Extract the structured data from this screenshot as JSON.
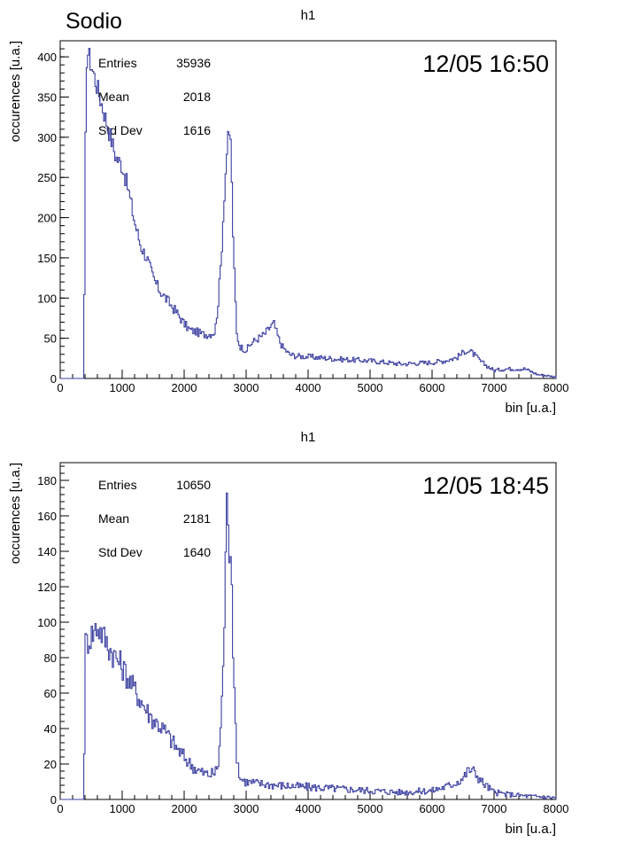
{
  "figure_title": "Sodio",
  "chart_data": [
    {
      "type": "histogram",
      "title": "h1",
      "timestamp": "12/05 16:50",
      "xlabel": "bin [u.a.]",
      "ylabel": "occurences [u.a.]",
      "xlim": [
        0,
        8000
      ],
      "ylim": [
        0,
        420
      ],
      "x_ticks": [
        0,
        1000,
        2000,
        3000,
        4000,
        5000,
        6000,
        7000,
        8000
      ],
      "y_ticks": [
        0,
        50,
        100,
        150,
        200,
        250,
        300,
        350,
        400
      ],
      "line_color": "#3b3fa0",
      "stats": [
        {
          "label": "Entries",
          "value": "35936"
        },
        {
          "label": "Mean",
          "value": "2018"
        },
        {
          "label": "Std Dev",
          "value": "1616"
        }
      ],
      "series": [
        {
          "x": [
            0,
            380,
            420,
            450,
            850,
            900,
            1000,
            1100,
            1200,
            1300,
            1400,
            1500,
            1600,
            1700,
            1800,
            1900,
            2000,
            2100,
            2200,
            2300,
            2400,
            2500,
            2550,
            2600,
            2650,
            2700,
            2750,
            2800,
            2850,
            2900,
            3000,
            3100,
            3200,
            3300,
            3400,
            3450,
            3500,
            3550,
            3600,
            3700,
            3800,
            4000,
            4500,
            5000,
            5500,
            6000,
            6200,
            6400,
            6550,
            6650,
            6800,
            7000,
            7200,
            7500,
            7700,
            8000
          ],
          "y": [
            0,
            0,
            395,
            405,
            290,
            275,
            265,
            235,
            195,
            165,
            150,
            125,
            110,
            100,
            90,
            80,
            68,
            60,
            58,
            55,
            55,
            58,
            95,
            150,
            230,
            295,
            300,
            150,
            55,
            40,
            35,
            45,
            50,
            55,
            65,
            68,
            55,
            45,
            38,
            30,
            28,
            27,
            24,
            22,
            18,
            20,
            22,
            26,
            35,
            32,
            20,
            10,
            12,
            12,
            5,
            2
          ]
        }
      ]
    },
    {
      "type": "histogram",
      "title": "h1",
      "timestamp": "12/05 18:45",
      "xlabel": "bin [u.a.]",
      "ylabel": "occurences [u.a.]",
      "xlim": [
        0,
        8000
      ],
      "ylim": [
        0,
        190
      ],
      "x_ticks": [
        0,
        1000,
        2000,
        3000,
        4000,
        5000,
        6000,
        7000,
        8000
      ],
      "y_ticks": [
        0,
        20,
        40,
        60,
        80,
        100,
        120,
        140,
        160,
        180
      ],
      "line_color": "#3b3fa0",
      "stats": [
        {
          "label": "Entries",
          "value": "10650"
        },
        {
          "label": "Mean",
          "value": "2181"
        },
        {
          "label": "Std Dev",
          "value": "1640"
        }
      ],
      "series": [
        {
          "x": [
            0,
            380,
            410,
            450,
            550,
            600,
            700,
            800,
            900,
            1000,
            1100,
            1200,
            1300,
            1400,
            1500,
            1600,
            1700,
            1800,
            1900,
            2000,
            2100,
            2200,
            2300,
            2400,
            2500,
            2550,
            2600,
            2650,
            2680,
            2700,
            2720,
            2750,
            2780,
            2800,
            2850,
            2900,
            3000,
            3200,
            3500,
            4000,
            4500,
            5000,
            5500,
            6000,
            6300,
            6500,
            6600,
            6700,
            6800,
            7000,
            7200,
            7500,
            8000
          ],
          "y": [
            0,
            0,
            88,
            90,
            95,
            98,
            92,
            85,
            80,
            75,
            68,
            62,
            56,
            50,
            45,
            42,
            38,
            33,
            28,
            24,
            20,
            17,
            15,
            14,
            15,
            20,
            45,
            100,
            150,
            185,
            140,
            145,
            110,
            65,
            25,
            12,
            10,
            9,
            8,
            7,
            6,
            5,
            4,
            5,
            8,
            12,
            17,
            15,
            10,
            4,
            3,
            2,
            1
          ]
        }
      ]
    }
  ]
}
